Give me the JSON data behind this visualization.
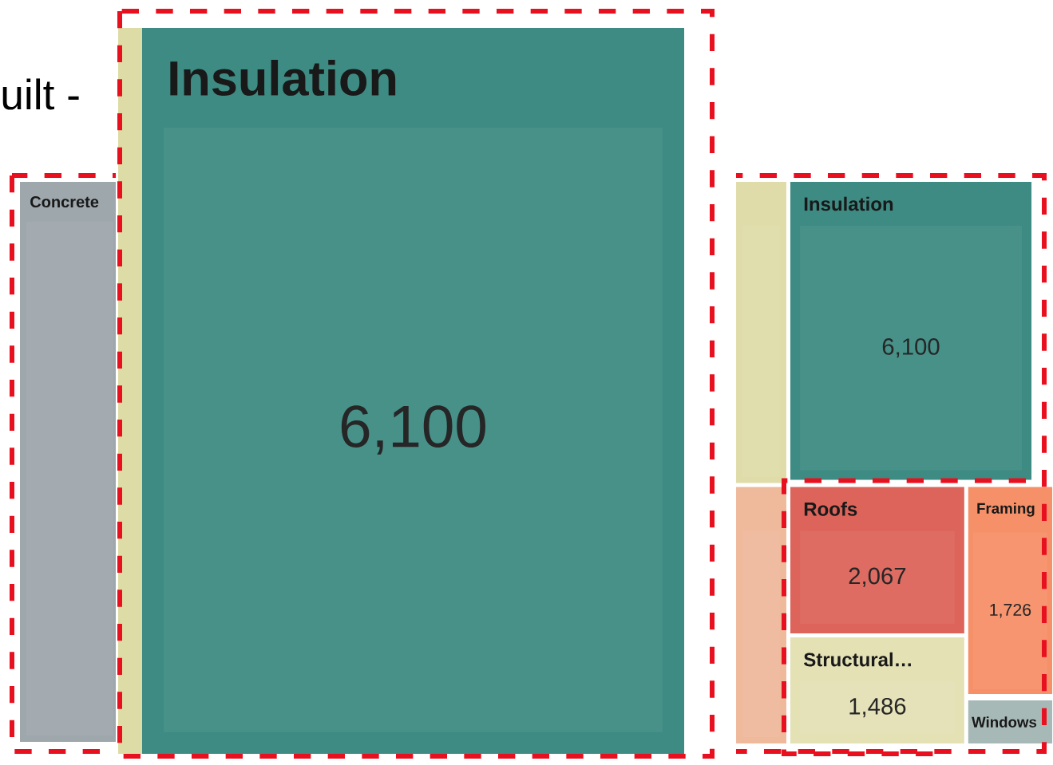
{
  "chart_data": [
    {
      "type": "other",
      "title": "uilt -",
      "value_labels": [
        null,
        null,
        null,
        "6,100",
        "2,067",
        "1,486",
        "1,726",
        null
      ],
      "categories": [
        "Concrete",
        null,
        null,
        "Insulation",
        "Roofs",
        "Structural…",
        "Framing",
        "Windows"
      ],
      "values": [
        null,
        null,
        null,
        6100,
        2067,
        1486,
        1726,
        null
      ],
      "colors": [
        "#9ea7ac",
        "#e0dcaa",
        "#efb99c",
        "#3d8b83",
        "#dc645a",
        "#e4e1b5",
        "#f59068",
        "#a7b9b6"
      ]
    },
    {
      "type": "other",
      "value_labels": [
        null,
        "6,100"
      ],
      "categories": [
        null,
        "Insulation"
      ],
      "values": [
        null,
        6100
      ],
      "colors": [
        "#dedca6",
        "#3d8b83"
      ]
    }
  ]
}
